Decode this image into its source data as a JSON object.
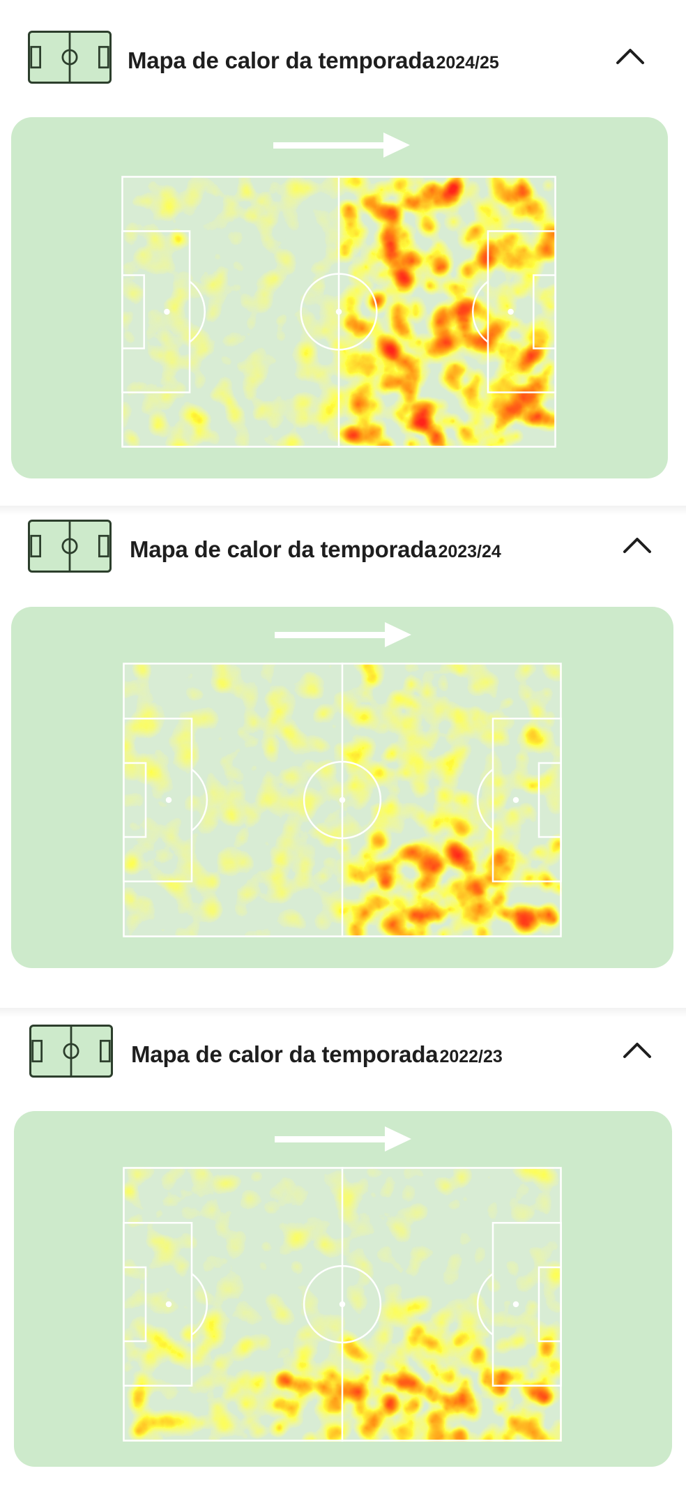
{
  "sections": [
    {
      "title": "Mapa de calor da temporada",
      "season": "2024/25",
      "icons": {
        "header": "football-pitch-icon",
        "toggle": "chevron-up-icon",
        "direction": "arrow-right-icon"
      },
      "intensity": "high"
    },
    {
      "title": "Mapa de calor da temporada",
      "season": "2023/24",
      "icons": {
        "header": "football-pitch-icon",
        "toggle": "chevron-up-icon",
        "direction": "arrow-right-icon"
      },
      "intensity": "medium"
    },
    {
      "title": "Mapa de calor da temporada",
      "season": "2022/23",
      "icons": {
        "header": "football-pitch-icon",
        "toggle": "chevron-up-icon",
        "direction": "arrow-right-icon"
      },
      "intensity": "medium"
    }
  ],
  "colors": {
    "card_background": "#cdeacb",
    "pitch_background": "#d8ecd4",
    "heat_low": "#ffff66",
    "heat_mid": "#ff9900",
    "heat_high": "#ff2a1a",
    "lines": "#ffffff",
    "text": "#1e1e1e"
  }
}
